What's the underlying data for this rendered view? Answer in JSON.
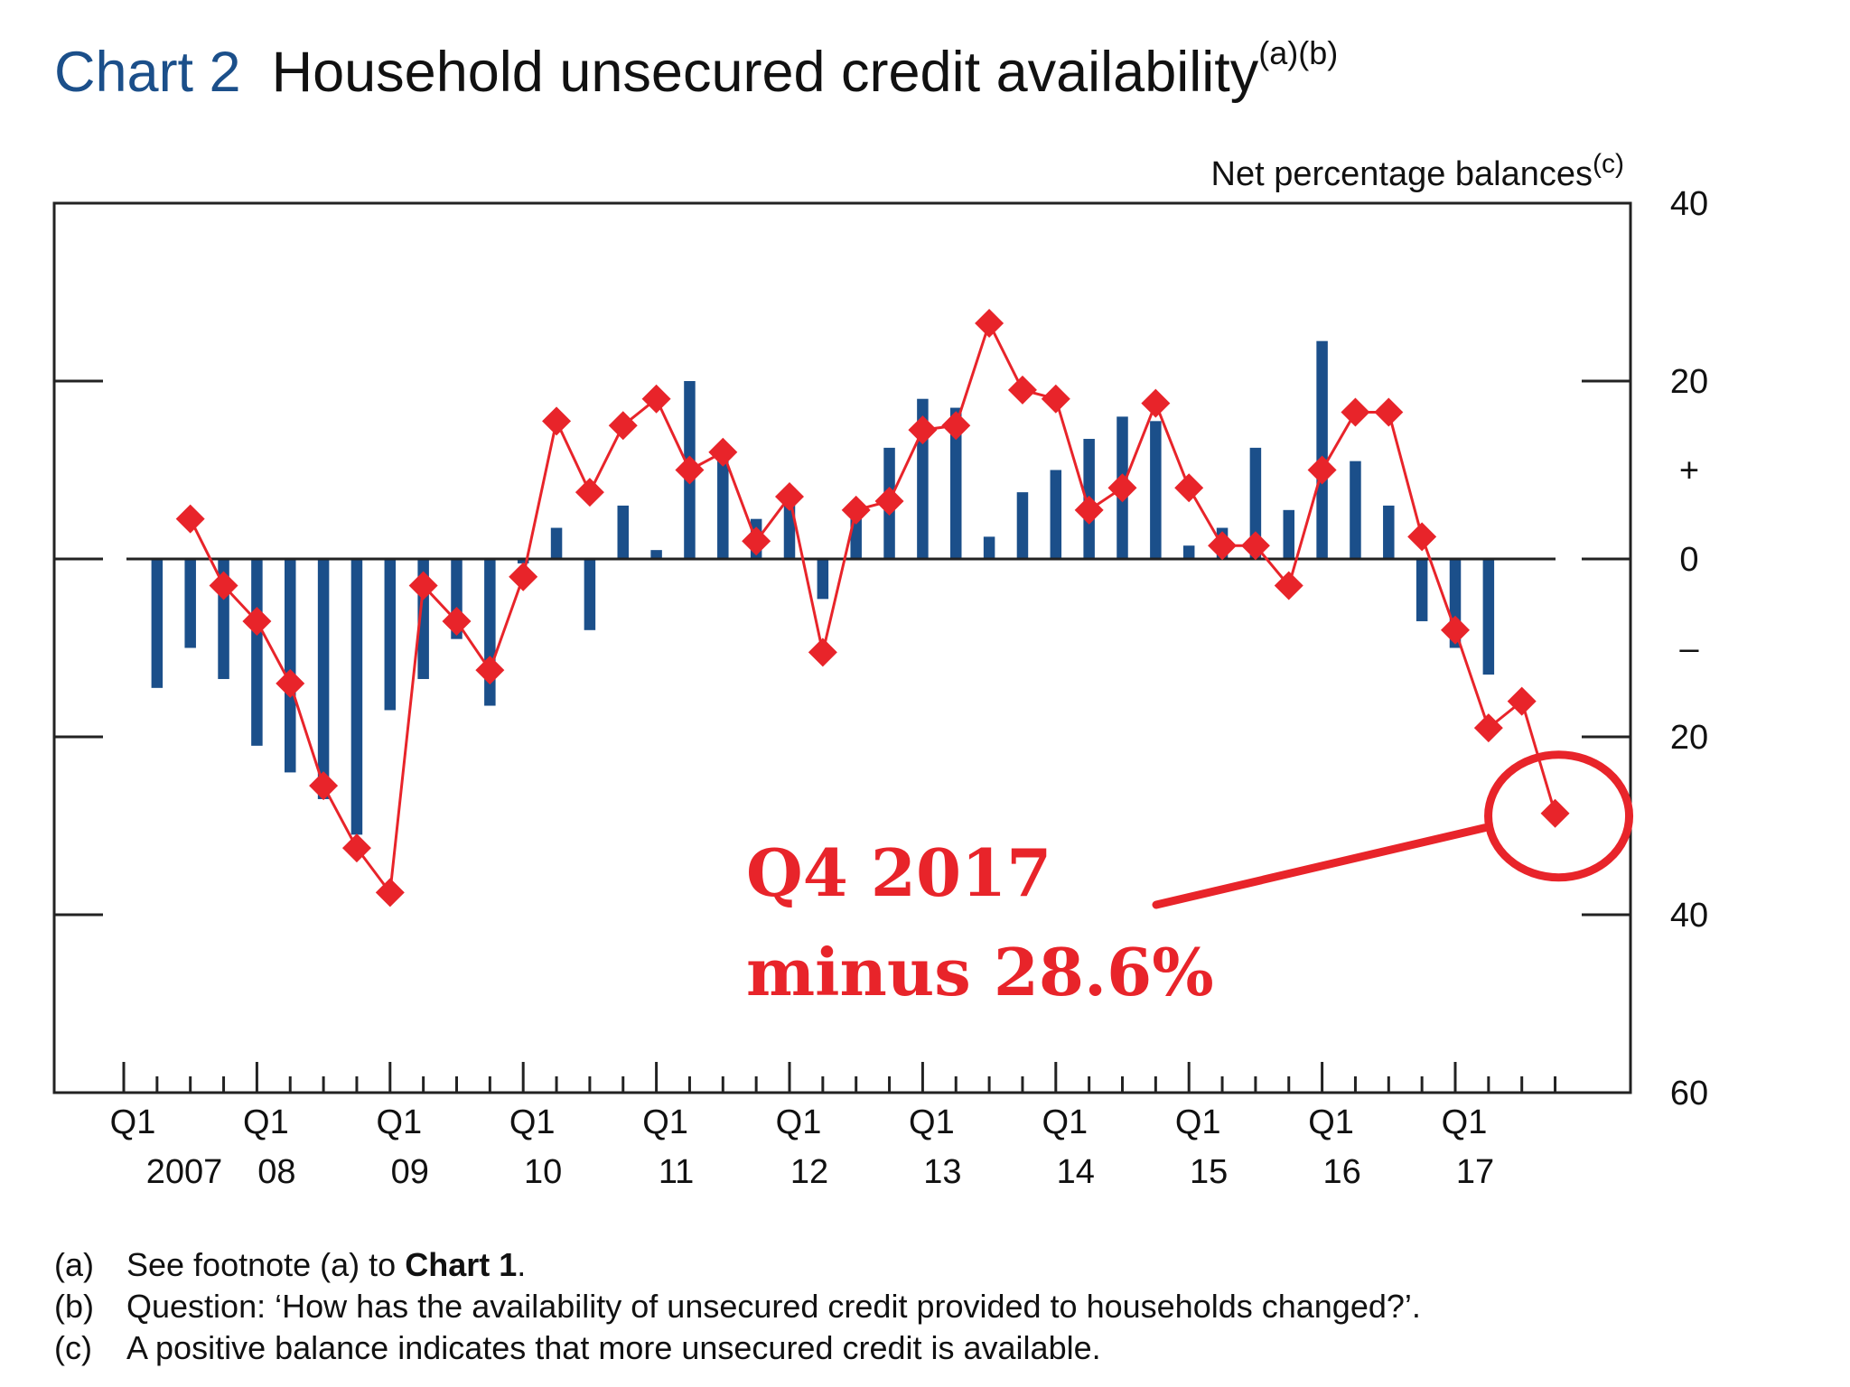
{
  "title": {
    "number": "Chart 2",
    "text": "Household unsecured credit availability",
    "notes": "(a)(b)"
  },
  "chart_data": {
    "type": "bar",
    "title": "Household unsecured credit availability",
    "ylabel": "Net percentage balances",
    "ylabel_note": "(c)",
    "ylim": [
      -60,
      40
    ],
    "yticks": [
      {
        "value": 40,
        "label": "40"
      },
      {
        "value": 20,
        "label": "20"
      },
      {
        "value": 10,
        "label": "+"
      },
      {
        "value": 0,
        "label": "0"
      },
      {
        "value": -10,
        "label": "–"
      },
      {
        "value": -20,
        "label": "20"
      },
      {
        "value": -40,
        "label": "40"
      },
      {
        "value": -60,
        "label": "60"
      }
    ],
    "grid": false,
    "xticks": [
      {
        "index": 0,
        "quarter": "Q1",
        "year": "2007"
      },
      {
        "index": 4,
        "quarter": "Q1",
        "year": "08"
      },
      {
        "index": 8,
        "quarter": "Q1",
        "year": "09"
      },
      {
        "index": 12,
        "quarter": "Q1",
        "year": "10"
      },
      {
        "index": 16,
        "quarter": "Q1",
        "year": "11"
      },
      {
        "index": 20,
        "quarter": "Q1",
        "year": "12"
      },
      {
        "index": 24,
        "quarter": "Q1",
        "year": "13"
      },
      {
        "index": 28,
        "quarter": "Q1",
        "year": "14"
      },
      {
        "index": 32,
        "quarter": "Q1",
        "year": "15"
      },
      {
        "index": 36,
        "quarter": "Q1",
        "year": "16"
      },
      {
        "index": 40,
        "quarter": "Q1",
        "year": "17"
      }
    ],
    "n_quarters": 44,
    "series": [
      {
        "type": "bar",
        "color": "#1b4f8a",
        "start_index": 1,
        "values": [
          -14.5,
          -10,
          -13.5,
          -21,
          -24,
          -27,
          -31,
          -17,
          -13.5,
          -9,
          -16.5,
          -0.5,
          3.5,
          -8,
          6,
          1,
          20,
          12.5,
          4.5,
          8,
          -4.5,
          6,
          12.5,
          18,
          17,
          2.5,
          7.5,
          10,
          13.5,
          16,
          15.5,
          1.5,
          3.5,
          12.5,
          5.5,
          24.5,
          11,
          6,
          -7,
          -10,
          -13
        ]
      },
      {
        "type": "line",
        "color": "#e8242a",
        "start_index": 2,
        "values": [
          4.5,
          -3,
          -7,
          -14,
          -25.5,
          -32.5,
          -37.5,
          -3,
          -7,
          -12.5,
          -2,
          15.5,
          7.5,
          15,
          18,
          10,
          12,
          2,
          7,
          -10.5,
          5.5,
          6.5,
          14.5,
          15,
          26.5,
          19,
          18,
          5.5,
          8,
          17.5,
          8,
          1.5,
          1.5,
          -3,
          10,
          16.5,
          16.5,
          2.5,
          -8,
          -19,
          -16,
          -28.6
        ]
      }
    ],
    "annotation": {
      "line1": "Q4 2017",
      "line2": "minus 28.6%",
      "index": 43,
      "value": -28.6,
      "color": "#e8242a"
    }
  },
  "footnotes": [
    {
      "label": "(a)",
      "text": "See footnote (a) to ",
      "bold": "Chart 1",
      "tail": "."
    },
    {
      "label": "(b)",
      "text": "Question:  ‘How has the availability of unsecured credit provided to households changed?’.",
      "bold": "",
      "tail": ""
    },
    {
      "label": "(c)",
      "text": "A positive balance indicates that more unsecured credit is available.",
      "bold": "",
      "tail": ""
    }
  ]
}
